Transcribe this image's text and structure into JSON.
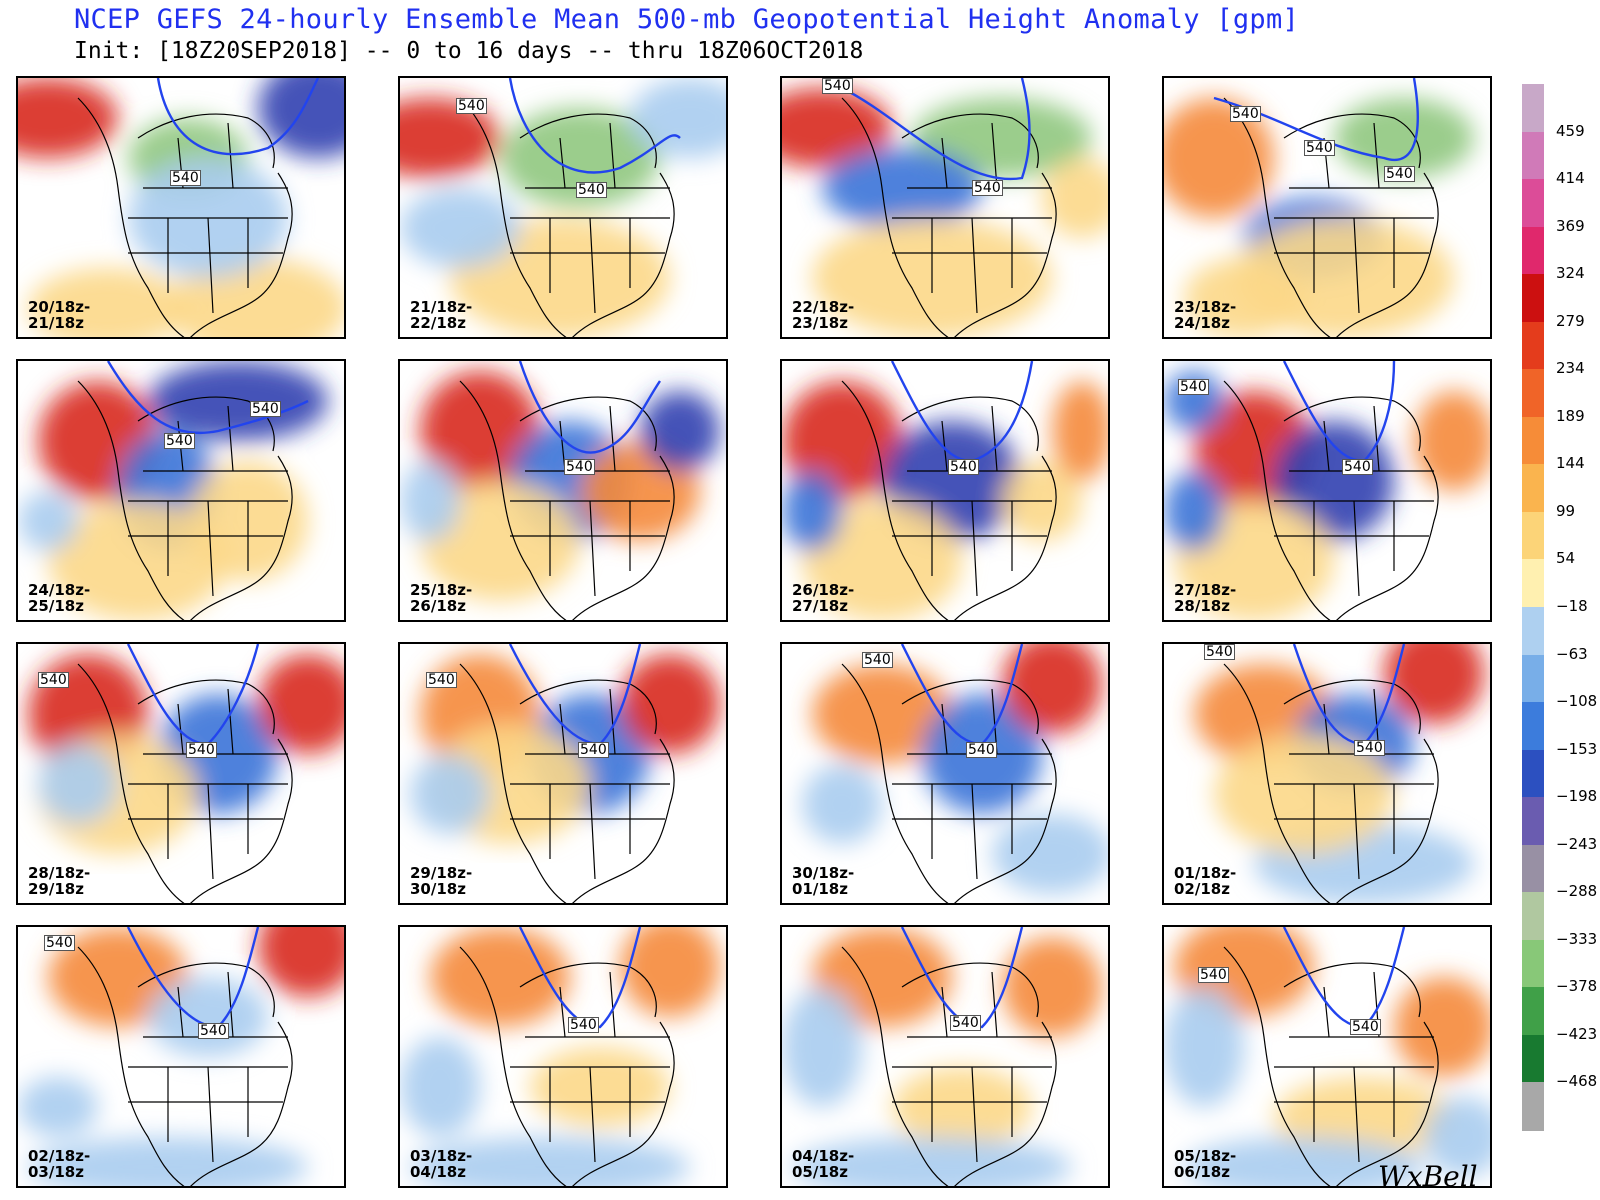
{
  "header": {
    "title": "NCEP GEFS 24-hourly Ensemble Mean 500-mb Geopotential Height Anomaly [gpm]",
    "subtitle": "Init: [18Z20SEP2018] -- 0 to 16 days -- thru 18Z06OCT2018"
  },
  "panels": [
    {
      "label": "20/18z-\n21/18z",
      "contours": [
        "540"
      ]
    },
    {
      "label": "21/18z-\n22/18z",
      "contours": [
        "540",
        "540"
      ]
    },
    {
      "label": "22/18z-\n23/18z",
      "contours": [
        "540",
        "540"
      ]
    },
    {
      "label": "23/18z-\n24/18z",
      "contours": [
        "540",
        "540",
        "540"
      ]
    },
    {
      "label": "24/18z-\n25/18z",
      "contours": [
        "540",
        "540"
      ]
    },
    {
      "label": "25/18z-\n26/18z",
      "contours": [
        "540"
      ]
    },
    {
      "label": "26/18z-\n27/18z",
      "contours": [
        "540"
      ]
    },
    {
      "label": "27/18z-\n28/18z",
      "contours": [
        "540",
        "540"
      ]
    },
    {
      "label": "28/18z-\n29/18z",
      "contours": [
        "540",
        "540"
      ]
    },
    {
      "label": "29/18z-\n30/18z",
      "contours": [
        "540",
        "540"
      ]
    },
    {
      "label": "30/18z-\n01/18z",
      "contours": [
        "540",
        "540"
      ]
    },
    {
      "label": "01/18z-\n02/18z",
      "contours": [
        "540",
        "540"
      ]
    },
    {
      "label": "02/18z-\n03/18z",
      "contours": [
        "540",
        "540"
      ]
    },
    {
      "label": "03/18z-\n04/18z",
      "contours": [
        "540"
      ]
    },
    {
      "label": "04/18z-\n05/18z",
      "contours": [
        "540"
      ]
    },
    {
      "label": "05/18z-\n06/18z",
      "contours": [
        "540",
        "540"
      ]
    }
  ],
  "colorbar": {
    "labels": [
      "459",
      "414",
      "369",
      "324",
      "279",
      "234",
      "189",
      "144",
      "99",
      "54",
      "−18",
      "−63",
      "−108",
      "−153",
      "−198",
      "−243",
      "−288",
      "−333",
      "−378",
      "−423",
      "−468"
    ],
    "colors": [
      "#c8a8c8",
      "#d07ab8",
      "#dc4c98",
      "#e0286c",
      "#cc1010",
      "#e43c1c",
      "#f06428",
      "#f68c38",
      "#fab44e",
      "#fcd478",
      "#fff0b0",
      "#aed0f0",
      "#78aee8",
      "#3c7cdc",
      "#2c50c0",
      "#6a5cb0",
      "#9890a4",
      "#b0c8a0",
      "#88c878",
      "#40a048",
      "#187a30",
      "#a8a8a8"
    ]
  },
  "watermark": "WxBell"
}
